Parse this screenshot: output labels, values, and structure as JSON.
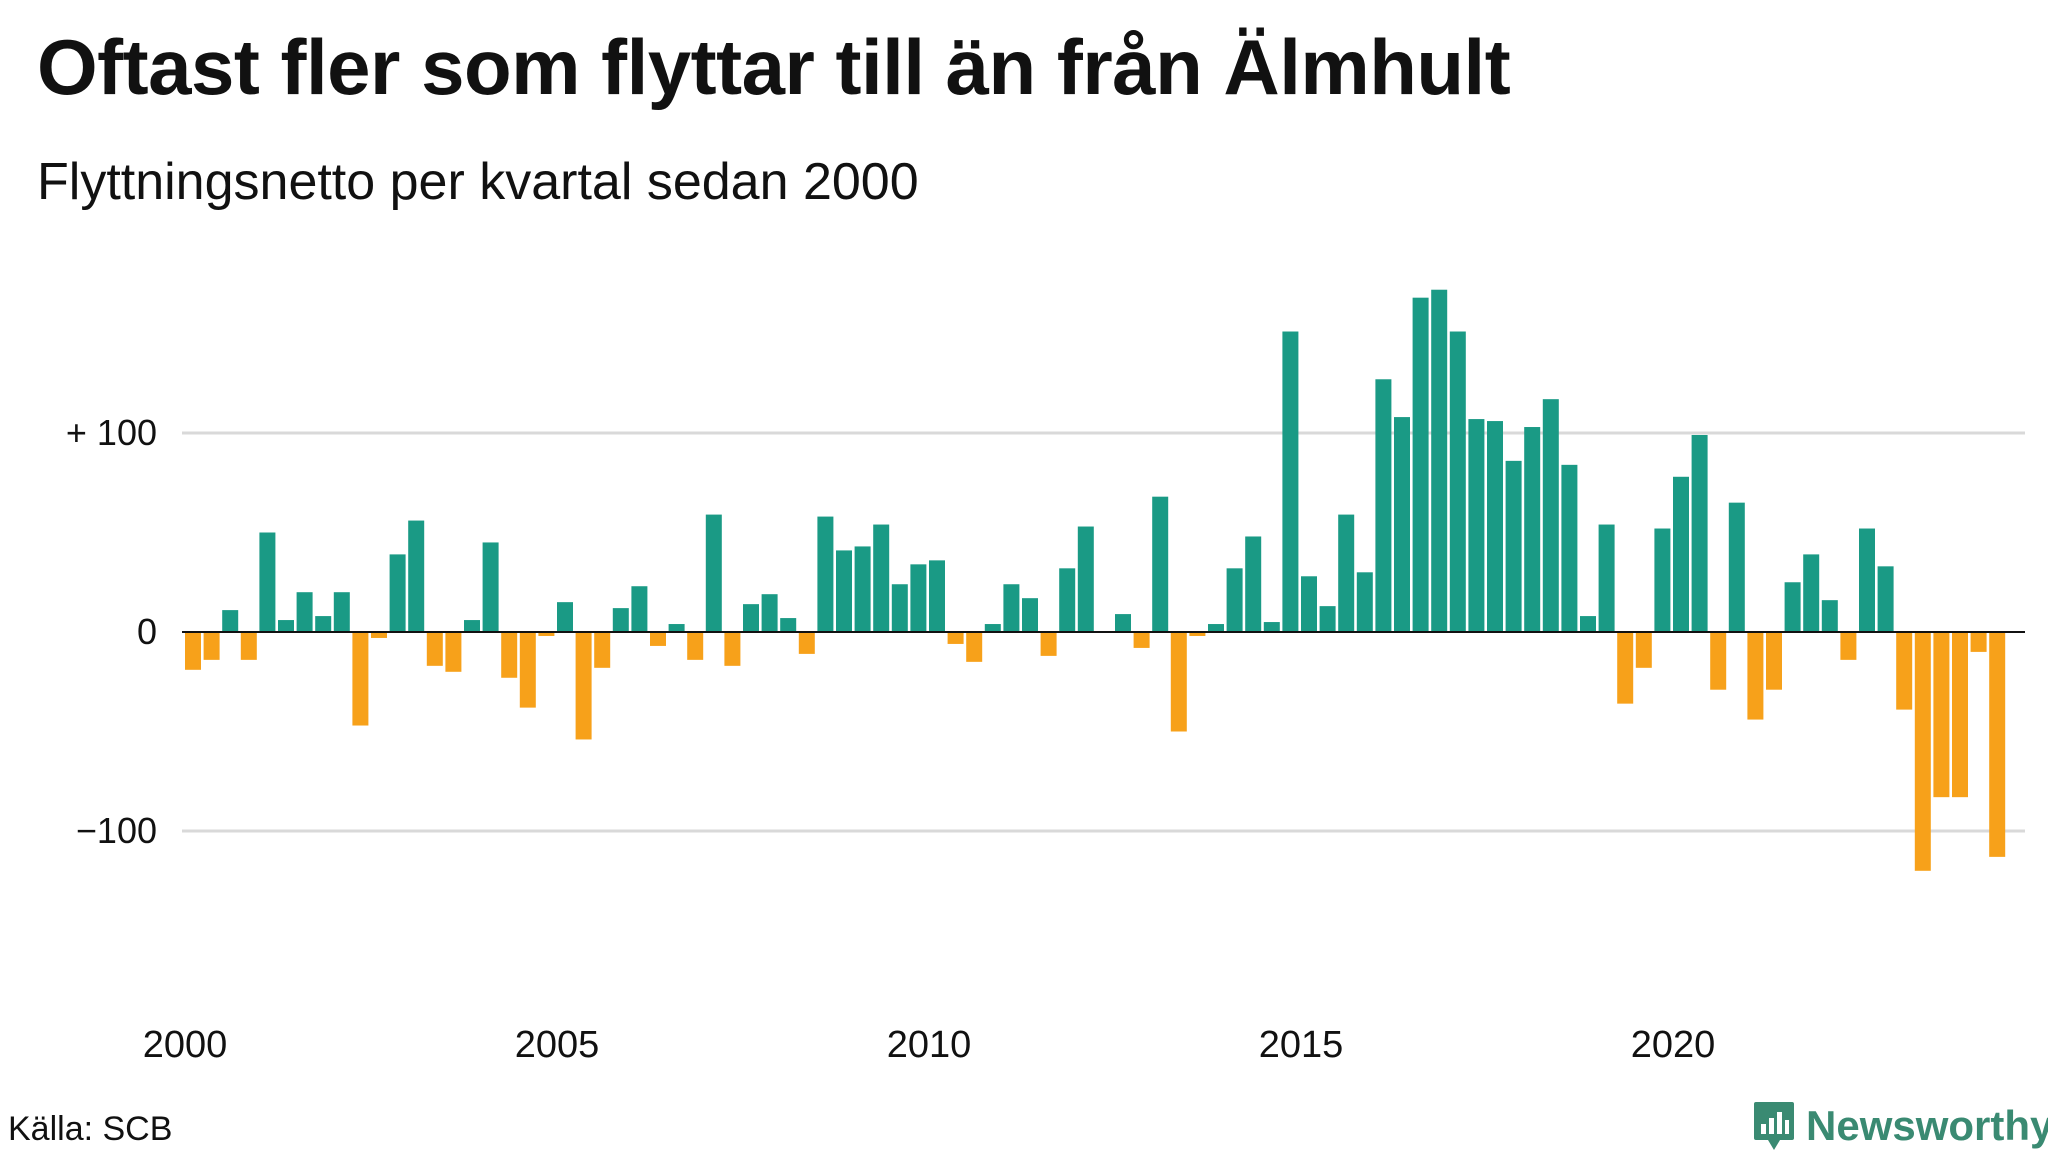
{
  "header": {
    "title": "Oftast fler som flyttar till än från Älmhult",
    "subtitle": "Flyttningsnetto per kvartal sedan 2000"
  },
  "footer": {
    "source": "Källa: SCB",
    "brand": "Newsworthy",
    "brand_icon": "newsworthy-logo-icon"
  },
  "colors": {
    "positive": "#1a9a85",
    "negative": "#f7a11a",
    "grid": "#d9d9d9",
    "baseline": "#111111",
    "brand": "#3a8a72"
  },
  "chart_data": {
    "type": "bar",
    "title": "Oftast fler som flyttar till än från Älmhult",
    "subtitle": "Flyttningsnetto per kvartal sedan 2000",
    "x_start": {
      "year": 2000,
      "quarter": 1
    },
    "frequency": "quarterly",
    "x_ticks": [
      "2000",
      "2005",
      "2010",
      "2015",
      "2020"
    ],
    "y_ticks": [
      {
        "value": 100,
        "label": "+ 100"
      },
      {
        "value": 0,
        "label": "0"
      },
      {
        "value": -100,
        "label": "−100"
      }
    ],
    "ylim": [
      -125,
      180
    ],
    "grid": true,
    "values": [
      -19,
      -14,
      11,
      -14,
      50,
      6,
      20,
      8,
      20,
      -47,
      -3,
      39,
      56,
      -17,
      -20,
      6,
      45,
      -23,
      -38,
      -2,
      15,
      -54,
      -18,
      12,
      23,
      -7,
      4,
      -14,
      59,
      -17,
      14,
      19,
      7,
      -11,
      58,
      41,
      43,
      54,
      24,
      34,
      36,
      -6,
      -15,
      4,
      24,
      17,
      -12,
      32,
      53,
      0,
      9,
      -8,
      68,
      -50,
      -2,
      4,
      32,
      48,
      5,
      151,
      28,
      13,
      59,
      30,
      127,
      108,
      168,
      172,
      151,
      107,
      106,
      86,
      103,
      117,
      84,
      8,
      54,
      -36,
      -18,
      52,
      78,
      99,
      -29,
      65,
      -44,
      -29,
      25,
      39,
      16,
      -14,
      52,
      33,
      -39,
      -120,
      -83,
      -83,
      -10,
      -113
    ]
  }
}
